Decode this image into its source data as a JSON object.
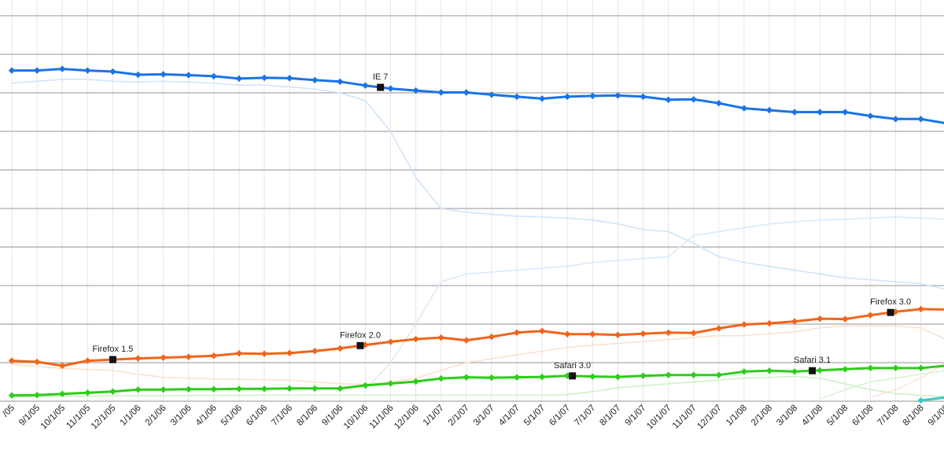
{
  "chart_data": {
    "type": "line",
    "title": "",
    "xlabel": "",
    "ylabel": "",
    "grid": true,
    "x_start_month": "8/1/05",
    "categories": [
      "8/1/05",
      "9/1/05",
      "10/1/05",
      "11/1/05",
      "12/1/05",
      "1/1/06",
      "2/1/06",
      "3/1/06",
      "4/1/06",
      "5/1/06",
      "6/1/06",
      "7/1/06",
      "8/1/06",
      "9/1/06",
      "10/1/06",
      "11/1/06",
      "12/1/06",
      "1/1/07",
      "2/1/07",
      "3/1/07",
      "4/1/07",
      "5/1/07",
      "6/1/07",
      "7/1/07",
      "8/1/07",
      "9/1/07",
      "10/1/07",
      "11/1/07",
      "12/1/07",
      "1/1/08",
      "2/1/08",
      "3/1/08",
      "4/1/08",
      "5/1/08",
      "6/1/08",
      "7/1/08",
      "8/1/08",
      "9/1/08",
      "10/1/08"
    ],
    "x_tick_labels": [
      "/05",
      "9/1/05",
      "10/1/05",
      "11/1/05",
      "12/1/05",
      "1/1/06",
      "2/1/06",
      "3/1/06",
      "4/1/06",
      "5/1/06",
      "6/1/06",
      "7/1/06",
      "8/1/06",
      "9/1/06",
      "10/1/06",
      "11/1/06",
      "12/1/06",
      "1/1/07",
      "2/1/07",
      "3/1/07",
      "4/1/07",
      "5/1/07",
      "6/1/07",
      "7/1/07",
      "8/1/07",
      "9/1/07",
      "10/1/07",
      "11/1/07",
      "12/1/07",
      "1/1/08",
      "2/1/08",
      "3/1/08",
      "4/1/08",
      "5/1/08",
      "6/1/08",
      "7/1/08",
      "8/1/08",
      "9/1/08",
      "10/"
    ],
    "ylim": [
      0,
      10
    ],
    "series": [
      {
        "color": "#1a73e8",
        "values": [
          8.58,
          8.58,
          8.62,
          8.58,
          8.55,
          8.47,
          8.48,
          8.46,
          8.43,
          8.37,
          8.39,
          8.38,
          8.33,
          8.29,
          8.19,
          8.11,
          8.06,
          8.01,
          8.01,
          7.95,
          7.9,
          7.85,
          7.9,
          7.92,
          7.93,
          7.9,
          7.82,
          7.83,
          7.73,
          7.6,
          7.55,
          7.5,
          7.5,
          7.5,
          7.4,
          7.32,
          7.32,
          7.21,
          7.12
        ]
      },
      {
        "color": "#f26419",
        "values": [
          1.05,
          1.02,
          0.92,
          1.05,
          1.08,
          1.11,
          1.13,
          1.15,
          1.18,
          1.24,
          1.23,
          1.25,
          1.3,
          1.37,
          1.46,
          1.54,
          1.61,
          1.65,
          1.58,
          1.67,
          1.78,
          1.82,
          1.74,
          1.74,
          1.72,
          1.75,
          1.78,
          1.77,
          1.89,
          1.99,
          2.02,
          2.07,
          2.14,
          2.13,
          2.23,
          2.32,
          2.39,
          2.38,
          2.43
        ]
      },
      {
        "color": "#2ecc1a",
        "values": [
          0.15,
          0.16,
          0.19,
          0.22,
          0.25,
          0.3,
          0.3,
          0.31,
          0.31,
          0.32,
          0.32,
          0.33,
          0.33,
          0.33,
          0.41,
          0.46,
          0.51,
          0.59,
          0.62,
          0.61,
          0.62,
          0.63,
          0.66,
          0.64,
          0.63,
          0.66,
          0.68,
          0.68,
          0.68,
          0.77,
          0.79,
          0.77,
          0.8,
          0.83,
          0.86,
          0.86,
          0.86,
          0.92,
          0.97
        ]
      },
      {
        "color": "#3ec8c2",
        "values": [
          null,
          null,
          null,
          null,
          null,
          null,
          null,
          null,
          null,
          null,
          null,
          null,
          null,
          null,
          null,
          null,
          null,
          null,
          null,
          null,
          null,
          null,
          null,
          null,
          null,
          null,
          null,
          null,
          null,
          null,
          null,
          null,
          null,
          null,
          null,
          null,
          0.02,
          0.1,
          0.2
        ]
      }
    ],
    "faint_series": [
      {
        "color": "#cfe3fa",
        "values": [
          8.25,
          8.3,
          8.35,
          8.35,
          8.3,
          8.28,
          8.3,
          8.28,
          8.25,
          8.2,
          8.2,
          8.15,
          8.1,
          8.0,
          7.8,
          7.0,
          5.8,
          5.0,
          4.9,
          4.85,
          4.8,
          4.78,
          4.75,
          4.7,
          4.6,
          4.45,
          4.4,
          4.1,
          3.75,
          3.6,
          3.5,
          3.4,
          3.3,
          3.2,
          3.15,
          3.1,
          3.05,
          2.9,
          2.85
        ]
      },
      {
        "color": "#d9e8f8",
        "values": [
          null,
          null,
          null,
          null,
          null,
          null,
          null,
          null,
          null,
          null,
          null,
          null,
          null,
          null,
          0.3,
          1.0,
          2.0,
          3.1,
          3.3,
          3.35,
          3.4,
          3.45,
          3.5,
          3.6,
          3.65,
          3.7,
          3.75,
          4.3,
          4.4,
          4.5,
          4.6,
          4.65,
          4.7,
          4.72,
          4.75,
          4.78,
          4.75,
          4.72,
          4.7
        ]
      },
      {
        "color": "#fbe0cf",
        "values": [
          0.95,
          0.9,
          0.85,
          0.82,
          0.8,
          0.7,
          0.62,
          0.6,
          0.58,
          0.57,
          0.56,
          0.55,
          0.5,
          0.45,
          0.44,
          0.5,
          0.6,
          0.8,
          1.0,
          1.1,
          1.2,
          1.3,
          1.4,
          1.45,
          1.5,
          1.55,
          1.6,
          1.65,
          1.7,
          1.7,
          1.75,
          1.8,
          1.9,
          1.95,
          1.95,
          1.95,
          1.9,
          1.6,
          1.3
        ]
      },
      {
        "color": "#fbe4d4",
        "values": [
          null,
          null,
          null,
          null,
          null,
          null,
          null,
          null,
          null,
          null,
          null,
          null,
          null,
          null,
          null,
          null,
          null,
          null,
          null,
          null,
          null,
          null,
          null,
          null,
          null,
          null,
          null,
          null,
          null,
          null,
          null,
          null,
          null,
          null,
          0.1,
          0.3,
          0.6,
          1.0,
          1.4
        ]
      },
      {
        "color": "#cdefc6",
        "values": [
          0.12,
          0.12,
          0.13,
          0.13,
          0.14,
          0.14,
          0.14,
          0.15,
          0.15,
          0.15,
          0.16,
          0.16,
          0.16,
          0.16,
          0.16,
          0.16,
          0.16,
          0.16,
          0.16,
          0.16,
          0.16,
          0.16,
          0.17,
          0.25,
          0.35,
          0.4,
          0.45,
          0.5,
          0.55,
          0.6,
          0.62,
          0.64,
          0.6,
          0.45,
          0.3,
          0.2,
          0.15,
          0.12,
          0.1
        ]
      },
      {
        "color": "#d6f2d0",
        "values": [
          null,
          null,
          null,
          null,
          null,
          null,
          null,
          null,
          null,
          null,
          null,
          null,
          null,
          null,
          null,
          null,
          null,
          null,
          null,
          null,
          null,
          null,
          null,
          null,
          null,
          null,
          null,
          null,
          null,
          null,
          null,
          null,
          0.05,
          0.3,
          0.5,
          0.6,
          0.7,
          0.8,
          0.85
        ]
      }
    ],
    "annotations": [
      {
        "label": "IE 7",
        "series": 0,
        "x": 14.6
      },
      {
        "label": "Firefox 1.5",
        "series": 1,
        "x": 4.0
      },
      {
        "label": "Firefox 2.0",
        "series": 1,
        "x": 13.8
      },
      {
        "label": "Firefox 3.0",
        "series": 1,
        "x": 34.8
      },
      {
        "label": "Safari 3.0",
        "series": 2,
        "x": 22.2
      },
      {
        "label": "Safari 3.1",
        "series": 2,
        "x": 31.7
      }
    ]
  }
}
